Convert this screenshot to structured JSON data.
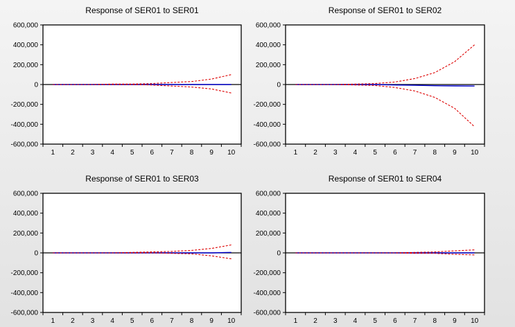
{
  "colors": {
    "response": "#0000cc",
    "band": "#dd0000",
    "axis": "#000000",
    "plot_bg": "#ffffff"
  },
  "chart_data": [
    {
      "type": "line",
      "title": "Response of SER01 to SER01",
      "x": [
        1,
        2,
        3,
        4,
        5,
        6,
        7,
        8,
        9,
        10
      ],
      "xticks": [
        "1",
        "2",
        "3",
        "4",
        "5",
        "6",
        "7",
        "8",
        "9",
        "10"
      ],
      "ylim": [
        -600000,
        600000
      ],
      "yticks": [
        "600,000",
        "400,000",
        "200,000",
        "0",
        "-200,000",
        "-400,000",
        "-600,000"
      ],
      "ytick_values": [
        600000,
        400000,
        200000,
        0,
        -200000,
        -400000,
        -600000
      ],
      "series": [
        {
          "name": "response",
          "values": [
            0,
            0,
            0,
            0,
            0,
            0,
            0,
            0,
            0,
            0
          ]
        },
        {
          "name": "upper",
          "values": [
            0,
            0,
            0,
            5000,
            5000,
            10000,
            20000,
            30000,
            55000,
            100000
          ]
        },
        {
          "name": "lower",
          "values": [
            0,
            0,
            0,
            0,
            0,
            -5000,
            -15000,
            -25000,
            -45000,
            -85000
          ]
        }
      ]
    },
    {
      "type": "line",
      "title": "Response of SER01 to SER02",
      "x": [
        1,
        2,
        3,
        4,
        5,
        6,
        7,
        8,
        9,
        10
      ],
      "xticks": [
        "1",
        "2",
        "3",
        "4",
        "5",
        "6",
        "7",
        "8",
        "9",
        "10"
      ],
      "ylim": [
        -600000,
        600000
      ],
      "yticks": [
        "600,000",
        "400,000",
        "200,000",
        "0",
        "-200,000",
        "-400,000",
        "-600,000"
      ],
      "ytick_values": [
        600000,
        400000,
        200000,
        0,
        -200000,
        -400000,
        -600000
      ],
      "series": [
        {
          "name": "response",
          "values": [
            0,
            0,
            0,
            0,
            0,
            -5000,
            -8000,
            -12000,
            -14000,
            -15000
          ]
        },
        {
          "name": "upper",
          "values": [
            0,
            0,
            0,
            5000,
            10000,
            25000,
            60000,
            120000,
            230000,
            400000
          ]
        },
        {
          "name": "lower",
          "values": [
            0,
            0,
            0,
            -5000,
            -10000,
            -30000,
            -65000,
            -130000,
            -240000,
            -425000
          ]
        }
      ]
    },
    {
      "type": "line",
      "title": "Response of SER01 to SER03",
      "x": [
        1,
        2,
        3,
        4,
        5,
        6,
        7,
        8,
        9,
        10
      ],
      "xticks": [
        "1",
        "2",
        "3",
        "4",
        "5",
        "6",
        "7",
        "8",
        "9",
        "10"
      ],
      "ylim": [
        -600000,
        600000
      ],
      "yticks": [
        "600,000",
        "400,000",
        "200,000",
        "0",
        "-200,000",
        "-400,000",
        "-600,000"
      ],
      "ytick_values": [
        600000,
        400000,
        200000,
        0,
        -200000,
        -400000,
        -600000
      ],
      "series": [
        {
          "name": "response",
          "values": [
            0,
            0,
            0,
            0,
            0,
            0,
            0,
            0,
            0,
            5000
          ]
        },
        {
          "name": "upper",
          "values": [
            0,
            0,
            0,
            0,
            5000,
            10000,
            15000,
            25000,
            45000,
            80000
          ]
        },
        {
          "name": "lower",
          "values": [
            0,
            0,
            0,
            0,
            0,
            0,
            -5000,
            -10000,
            -30000,
            -60000
          ]
        }
      ]
    },
    {
      "type": "line",
      "title": "Response of SER01 to SER04",
      "x": [
        1,
        2,
        3,
        4,
        5,
        6,
        7,
        8,
        9,
        10
      ],
      "xticks": [
        "1",
        "2",
        "3",
        "4",
        "5",
        "6",
        "7",
        "8",
        "9",
        "10"
      ],
      "ylim": [
        -600000,
        600000
      ],
      "yticks": [
        "600,000",
        "400,000",
        "200,000",
        "0",
        "-200,000",
        "-400,000",
        "-600,000"
      ],
      "ytick_values": [
        600000,
        400000,
        200000,
        0,
        -200000,
        -400000,
        -600000
      ],
      "series": [
        {
          "name": "response",
          "values": [
            0,
            0,
            0,
            0,
            0,
            0,
            0,
            0,
            0,
            0
          ]
        },
        {
          "name": "upper",
          "values": [
            0,
            0,
            0,
            0,
            0,
            0,
            5000,
            10000,
            20000,
            30000
          ]
        },
        {
          "name": "lower",
          "values": [
            0,
            0,
            0,
            0,
            0,
            0,
            -5000,
            -5000,
            -15000,
            -20000
          ]
        }
      ]
    }
  ]
}
